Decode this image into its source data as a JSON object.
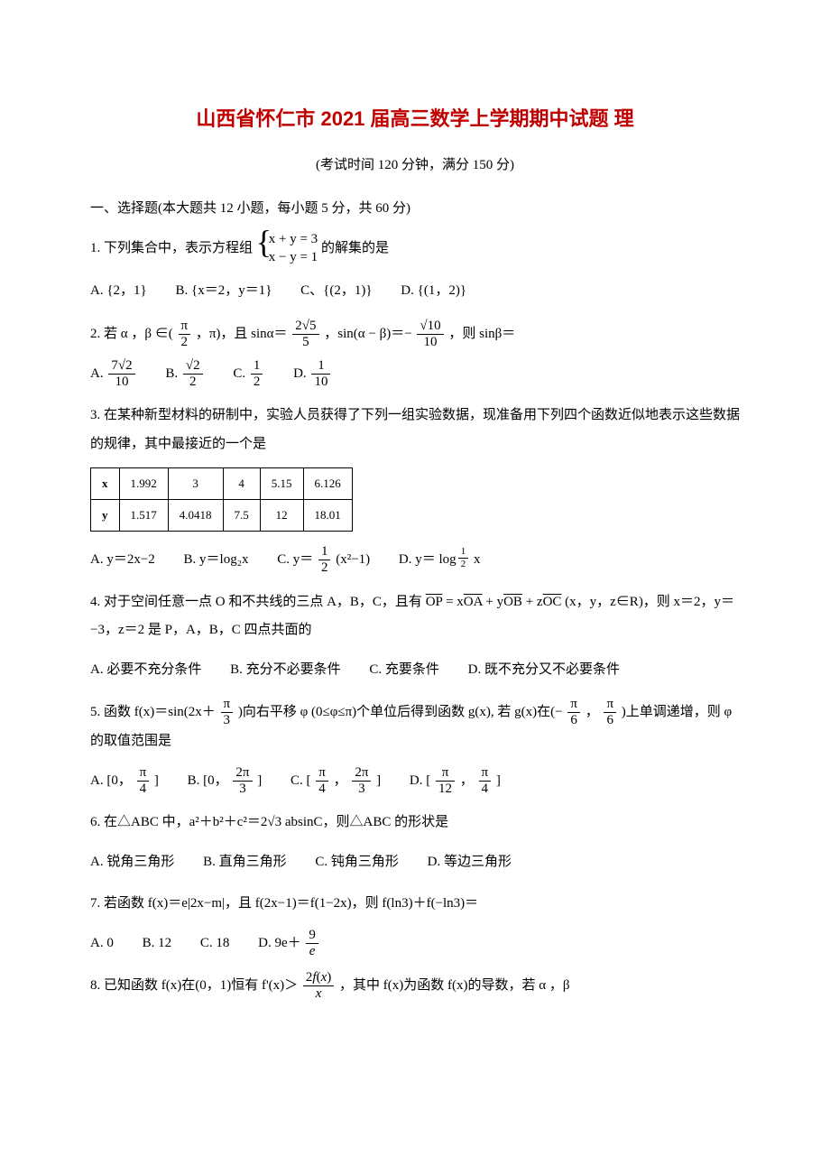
{
  "title": "山西省怀仁市 2021 届高三数学上学期期中试题 理",
  "subtitle": "(考试时间 120 分钟，满分 150 分)",
  "section1": "一、选择题(本大题共 12 小题，每小题 5 分，共 60 分)",
  "q1": {
    "pre": "1. 下列集合中，表示方程组",
    "eq1": "x + y = 3",
    "eq2": "x − y = 1",
    "post": "的解集的是",
    "A": "A. {2，1}",
    "B": "B. {x＝2，y＝1}",
    "C": "C、{(2，1)}",
    "D": "D. {(1，2)}"
  },
  "q2": {
    "text_a": "2. 若 α ，β ∈(",
    "f1n": "π",
    "f1d": "2",
    "text_b": "，π)，且 sinα＝",
    "f2n": "2√5",
    "f2d": "5",
    "text_c": "，sin(α − β)＝−",
    "f3n": "√10",
    "f3d": "10",
    "text_d": "，则 sinβ＝",
    "An": "7√2",
    "Ad": "10",
    "Bn": "√2",
    "Bd": "2",
    "Cn": "1",
    "Cd": "2",
    "Dn": "1",
    "Dd": "10",
    "LA": "A.",
    "LB": "B.",
    "LC": "C.",
    "LD": "D."
  },
  "q3": {
    "text1": "3. 在某种新型材料的研制中，实验人员获得了下列一组实验数据，现准备用下列四个函数近似地表示这些数据的规律，其中最接近的一个是",
    "table": {
      "h1": "x",
      "h2": "y",
      "x": [
        "1.992",
        "3",
        "4",
        "5.15",
        "6.126"
      ],
      "y": [
        "1.517",
        "4.0418",
        "7.5",
        "12",
        "18.01"
      ]
    },
    "A": "A. y＝2x−2",
    "B": "B. y＝log₂x",
    "Cpre": "C. y＝",
    "Cn": "1",
    "Cd": "2",
    "Cpost": "(x²−1)",
    "Dpre": "D. y＝",
    "Dlog": "log",
    "Dbn": "1",
    "Dbd": "2",
    "Dpost": "x"
  },
  "q4": {
    "text1": "4. 对于空间任意一点 O 和不共线的三点 A，B，C，且有",
    "vec": "OP = xOA + yOB + zOC",
    "text2": "(x，y，z∈R)，则 x＝2，y＝−3，z＝2 是 P，A，B，C 四点共面的",
    "A": "A. 必要不充分条件",
    "B": "B. 充分不必要条件",
    "C": "C. 充要条件",
    "D": "D. 既不充分又不必要条件"
  },
  "q5": {
    "t1": "5. 函数 f(x)＝sin(2x＋",
    "f1n": "π",
    "f1d": "3",
    "t2": ")向右平移 φ (0≤φ≤π)个单位后得到函数 g(x), 若 g(x)在(−",
    "f2n": "π",
    "f2d": "6",
    "t3": "，",
    "f3n": "π",
    "f3d": "6",
    "t4": ")上单调递增，则 φ 的取值范围是",
    "LA": "A. [0，",
    "An": "π",
    "Ad": "4",
    "Ae": "]",
    "LB": "B. [0，",
    "Bn": "2π",
    "Bd": "3",
    "Be": "]",
    "LC": "C. [",
    "C1n": "π",
    "C1d": "4",
    "Cm": "，",
    "C2n": "2π",
    "C2d": "3",
    "Ce": "]",
    "LD": "D. [",
    "D1n": "π",
    "D1d": "12",
    "Dm": "，",
    "D2n": "π",
    "D2d": "4",
    "De": "]"
  },
  "q6": {
    "text": "6. 在△ABC 中，a²＋b²＋c²＝2√3 absinC，则△ABC 的形状是",
    "A": "A. 锐角三角形",
    "B": "B. 直角三角形",
    "C": "C. 钝角三角形",
    "D": "D. 等边三角形"
  },
  "q7": {
    "text": "7. 若函数 f(x)＝e|2x−m|，且 f(2x−1)＝f(1−2x)，则 f(ln3)＋f(−ln3)＝",
    "A": "A. 0",
    "B": "B. 12",
    "C": "C. 18",
    "Dpre": "D. 9e＋",
    "Dn": "9",
    "Dd": "e"
  },
  "q8": {
    "t1": "8. 已知函数 f(x)在(0，1)恒有 f'(x)＞",
    "fn": "2f(x)",
    "fd": "x",
    "t2": "，其中 f(x)为函数 f(x)的导数，若 α ，β"
  },
  "italic_f": "f",
  "italic_x": "x"
}
